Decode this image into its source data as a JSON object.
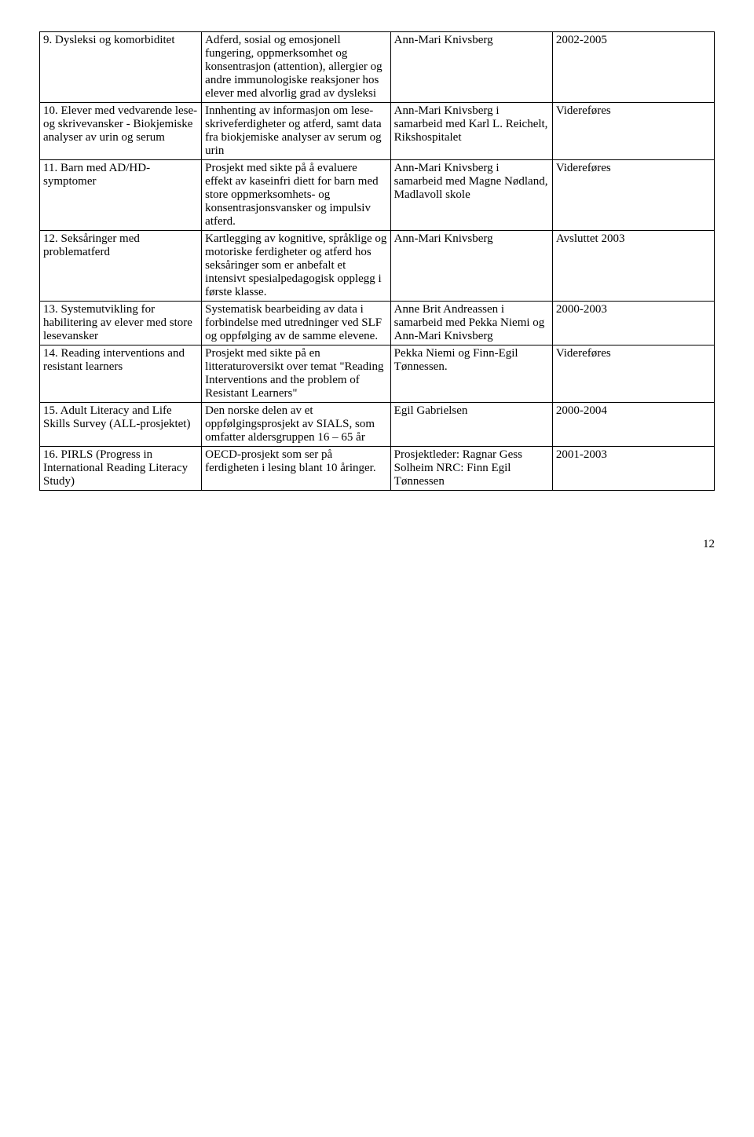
{
  "rows": [
    {
      "c1": "9. Dysleksi og komorbiditet",
      "c2": "Adferd, sosial og emosjonell fungering, oppmerksomhet og konsentrasjon (attention), allergier og andre immunologiske reaksjoner hos elever med alvorlig grad av dysleksi",
      "c3": "Ann-Mari Knivsberg",
      "c4": "2002-2005"
    },
    {
      "c1": "10. Elever med vedvarende lese- og skrivevansker - Biokjemiske analyser av urin og serum",
      "c2": "Innhenting av informasjon om lese-skriveferdigheter og atferd, samt data fra biokjemiske analyser av serum og urin",
      "c3": "Ann-Mari Knivsberg i samarbeid med Karl L. Reichelt, Rikshospitalet",
      "c4": "Videreføres"
    },
    {
      "c1": "11. Barn med AD/HD-symptomer",
      "c2": "Prosjekt med sikte på å evaluere effekt av kaseinfri diett for barn med store oppmerksomhets- og konsentrasjonsvansker og impulsiv atferd.",
      "c3": "Ann-Mari Knivsberg i samarbeid med Magne Nødland, Madlavoll skole",
      "c4": "Videreføres"
    },
    {
      "c1": "12. Seksåringer med problematferd",
      "c2": "Kartlegging av kognitive, språklige og motoriske ferdigheter og atferd hos seksåringer som er anbefalt et intensivt spesialpedagogisk opplegg i første klasse.",
      "c3": "Ann-Mari Knivsberg",
      "c4": "Avsluttet 2003"
    },
    {
      "c1": "13. Systemutvikling for habilitering av elever med store lesevansker",
      "c2": "Systematisk bearbeiding av data i forbindelse med utredninger ved SLF og oppfølging av de samme elevene.",
      "c3": "Anne Brit Andreassen i samarbeid med Pekka Niemi og Ann-Mari Knivsberg",
      "c4": "2000-2003"
    },
    {
      "c1": "14. Reading interventions and resistant learners",
      "c2": "Prosjekt med sikte på en litteraturoversikt over temat \"Reading Interventions and the problem of Resistant Learners\"",
      "c3": "Pekka Niemi og Finn-Egil Tønnessen.",
      "c4": "Videreføres"
    },
    {
      "c1": "15. Adult Literacy and Life Skills Survey (ALL-prosjektet)",
      "c2": "Den norske delen av et oppfølgingsprosjekt av SIALS, som omfatter aldersgruppen 16 – 65 år",
      "c3": "Egil Gabrielsen",
      "c4": "2000-2004"
    },
    {
      "c1": "16. PIRLS (Progress in International Reading Literacy Study)",
      "c2": "OECD-prosjekt som ser på ferdigheten i lesing blant 10 åringer.",
      "c3": "Prosjektleder: Ragnar Gess Solheim NRC: Finn Egil Tønnessen",
      "c4": "2001-2003"
    }
  ],
  "pageNumber": "12"
}
